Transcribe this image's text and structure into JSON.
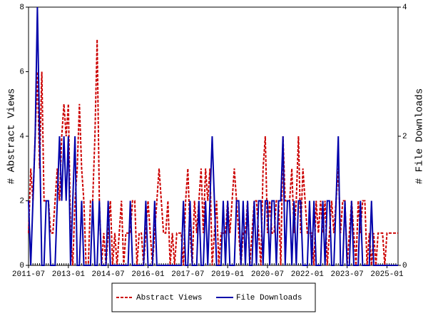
{
  "chart_data": {
    "type": "line",
    "x": [
      "2011-07",
      "2011-08",
      "2011-09",
      "2011-10",
      "2011-11",
      "2011-12",
      "2012-01",
      "2012-02",
      "2012-03",
      "2012-04",
      "2012-05",
      "2012-06",
      "2012-07",
      "2012-08",
      "2012-09",
      "2012-10",
      "2012-11",
      "2012-12",
      "2013-01",
      "2013-02",
      "2013-03",
      "2013-04",
      "2013-05",
      "2013-06",
      "2013-07",
      "2013-08",
      "2013-09",
      "2013-10",
      "2013-11",
      "2013-12",
      "2014-01",
      "2014-02",
      "2014-03",
      "2014-04",
      "2014-05",
      "2014-06",
      "2014-07",
      "2014-08",
      "2014-09",
      "2014-10",
      "2014-11",
      "2014-12",
      "2015-01",
      "2015-02",
      "2015-03",
      "2015-04",
      "2015-05",
      "2015-06",
      "2015-07",
      "2015-08",
      "2015-09",
      "2015-10",
      "2015-11",
      "2015-12",
      "2016-01",
      "2016-02",
      "2016-03",
      "2016-04",
      "2016-05",
      "2016-06",
      "2016-07",
      "2016-08",
      "2016-09",
      "2016-10",
      "2016-11",
      "2016-12",
      "2017-01",
      "2017-02",
      "2017-03",
      "2017-04",
      "2017-05",
      "2017-06",
      "2017-07",
      "2017-08",
      "2017-09",
      "2017-10",
      "2017-11",
      "2017-12",
      "2018-01",
      "2018-02",
      "2018-03",
      "2018-04",
      "2018-05",
      "2018-06",
      "2018-07",
      "2018-08",
      "2018-09",
      "2018-10",
      "2018-11",
      "2018-12",
      "2019-01",
      "2019-02",
      "2019-03",
      "2019-04",
      "2019-05",
      "2019-06",
      "2019-07",
      "2019-08",
      "2019-09",
      "2019-10",
      "2019-11",
      "2019-12",
      "2020-01",
      "2020-02",
      "2020-03",
      "2020-04",
      "2020-05",
      "2020-06",
      "2020-07",
      "2020-08",
      "2020-09",
      "2020-10",
      "2020-11",
      "2020-12",
      "2021-01",
      "2021-02",
      "2021-03",
      "2021-04",
      "2021-05",
      "2021-06",
      "2021-07",
      "2021-08",
      "2021-09",
      "2021-10",
      "2021-11",
      "2021-12",
      "2022-01",
      "2022-02",
      "2022-03",
      "2022-04",
      "2022-05",
      "2022-06",
      "2022-07",
      "2022-08",
      "2022-09",
      "2022-10",
      "2022-11",
      "2022-12",
      "2023-01",
      "2023-02",
      "2023-03",
      "2023-04",
      "2023-05",
      "2023-06",
      "2023-07",
      "2023-08",
      "2023-09",
      "2023-10",
      "2023-11",
      "2023-12",
      "2024-01",
      "2024-02",
      "2024-03",
      "2024-04",
      "2024-05",
      "2024-06",
      "2024-07",
      "2024-08",
      "2024-09",
      "2024-10",
      "2024-11",
      "2024-12",
      "2025-01",
      "2025-02",
      "2025-03",
      "2025-04",
      "2025-05",
      "2025-06"
    ],
    "xticks": [
      "2011-07",
      "2013-01",
      "2014-07",
      "2016-01",
      "2017-07",
      "2019-01",
      "2020-07",
      "2022-01",
      "2023-07",
      "2025-01"
    ],
    "y_label": "# Abstract Views",
    "y2_label": "# File Downloads",
    "ylim": [
      0,
      8
    ],
    "yticks": [
      0,
      2,
      4,
      6,
      8
    ],
    "y2lim": [
      0,
      4
    ],
    "y2ticks": [
      0,
      2,
      4
    ],
    "series": [
      {
        "name": "Abstract Views",
        "color": "#cc0000",
        "dashed": true,
        "values": [
          1,
          3,
          2,
          4,
          6,
          3,
          6,
          2,
          2,
          2,
          1,
          1,
          2,
          3,
          2,
          4,
          5,
          4,
          5,
          1,
          0,
          2,
          3,
          5,
          3,
          2,
          0,
          0,
          2,
          2,
          4,
          7,
          2,
          0,
          1,
          0,
          1,
          2,
          0,
          1,
          0,
          1,
          2,
          0,
          1,
          1,
          1,
          2,
          2,
          0,
          1,
          1,
          0,
          1,
          2,
          1,
          0,
          1,
          2,
          3,
          2,
          1,
          1,
          2,
          0,
          1,
          0,
          1,
          1,
          1,
          0,
          2,
          3,
          1,
          0,
          2,
          1,
          2,
          3,
          1,
          3,
          2,
          3,
          0,
          1,
          2,
          0,
          1,
          1,
          1,
          2,
          1,
          2,
          3,
          2,
          1,
          0,
          1,
          1,
          2,
          0,
          1,
          2,
          2,
          1,
          0,
          3,
          4,
          1,
          2,
          1,
          1,
          2,
          2,
          0,
          4,
          2,
          2,
          2,
          3,
          1,
          2,
          4,
          1,
          3,
          2,
          1,
          1,
          1,
          0,
          2,
          1,
          2,
          1,
          2,
          0,
          1,
          2,
          1,
          2,
          3,
          1,
          2,
          2,
          0,
          1,
          2,
          1,
          0,
          2,
          1,
          2,
          2,
          0,
          1,
          0,
          1,
          0,
          1,
          1,
          1,
          0,
          1,
          1,
          1,
          1,
          1,
          1
        ]
      },
      {
        "name": "File Downloads",
        "color": "#0000aa",
        "dashed": false,
        "axis": "y2",
        "values": [
          1,
          0,
          1,
          2,
          4,
          2,
          0,
          0,
          1,
          1,
          0,
          0,
          0,
          1,
          2,
          1,
          2,
          1,
          2,
          0,
          1,
          2,
          0,
          0,
          1,
          0,
          0,
          0,
          0,
          1,
          0,
          0,
          1,
          0,
          0,
          0,
          1,
          0,
          0,
          0,
          0,
          0,
          0,
          0,
          0,
          0,
          1,
          0,
          0,
          0,
          0,
          0,
          0,
          1,
          0,
          0,
          0,
          1,
          0,
          0,
          0,
          0,
          0,
          0,
          0,
          0,
          0,
          0,
          0,
          0,
          1,
          0,
          0,
          1,
          0,
          0,
          0,
          1,
          0,
          0,
          1,
          0,
          1,
          2,
          1,
          0,
          0,
          0,
          1,
          0,
          1,
          0,
          0,
          0,
          1,
          1,
          0,
          1,
          0,
          1,
          0,
          0,
          1,
          0,
          1,
          1,
          0,
          1,
          1,
          0,
          1,
          1,
          0,
          1,
          1,
          2,
          0,
          1,
          1,
          0,
          1,
          0,
          1,
          1,
          0,
          0,
          0,
          1,
          0,
          1,
          0,
          0,
          0,
          1,
          0,
          1,
          1,
          0,
          0,
          1,
          2,
          0,
          0,
          1,
          0,
          0,
          1,
          0,
          0,
          0,
          1,
          0,
          0,
          0,
          0,
          1,
          0,
          0,
          0,
          0,
          0,
          0,
          0,
          0,
          0,
          0,
          0,
          0
        ]
      }
    ]
  }
}
